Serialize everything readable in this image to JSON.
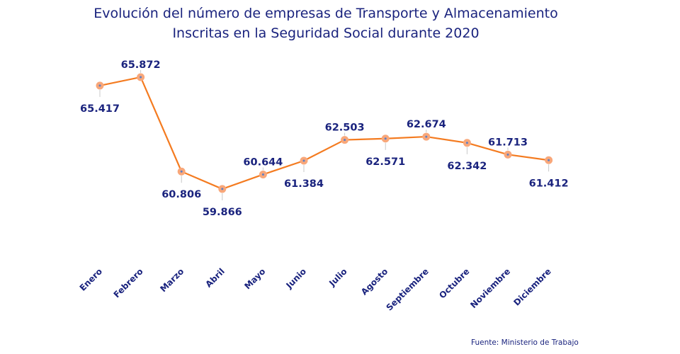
{
  "chart_data": {
    "type": "line",
    "title": "Evolución del número de empresas de Transporte y Almacenamiento",
    "subtitle": "Inscritas en la Seguridad Social durante 2020",
    "categories": [
      "Enero",
      "Febrero",
      "Marzo",
      "Abril",
      "Mayo",
      "Junio",
      "Julio",
      "Agosto",
      "Septiembre",
      "Octubre",
      "Noviembre",
      "Diciembre"
    ],
    "values": [
      65417,
      65872,
      60806,
      59866,
      60644,
      61384,
      62503,
      62571,
      62674,
      62342,
      61713,
      61412
    ],
    "data_labels": [
      "65.417",
      "65.872",
      "60.806",
      "59.866",
      "60.644",
      "61.384",
      "62.503",
      "62.571",
      "62.674",
      "62.342",
      "61.713",
      "61.412"
    ],
    "label_positions": [
      "below",
      "above",
      "below",
      "below",
      "above",
      "below",
      "above",
      "below",
      "above",
      "below",
      "above",
      "below"
    ],
    "ylim": [
      56000,
      67000
    ],
    "grid": false,
    "colors": {
      "line": "#f47b20",
      "marker": "#f8a77a",
      "marker_center": "#5b7fc7",
      "text": "#1a237e",
      "leader": "#c8c8c8"
    }
  },
  "source": "Fuente: Ministerio de Trabajo"
}
